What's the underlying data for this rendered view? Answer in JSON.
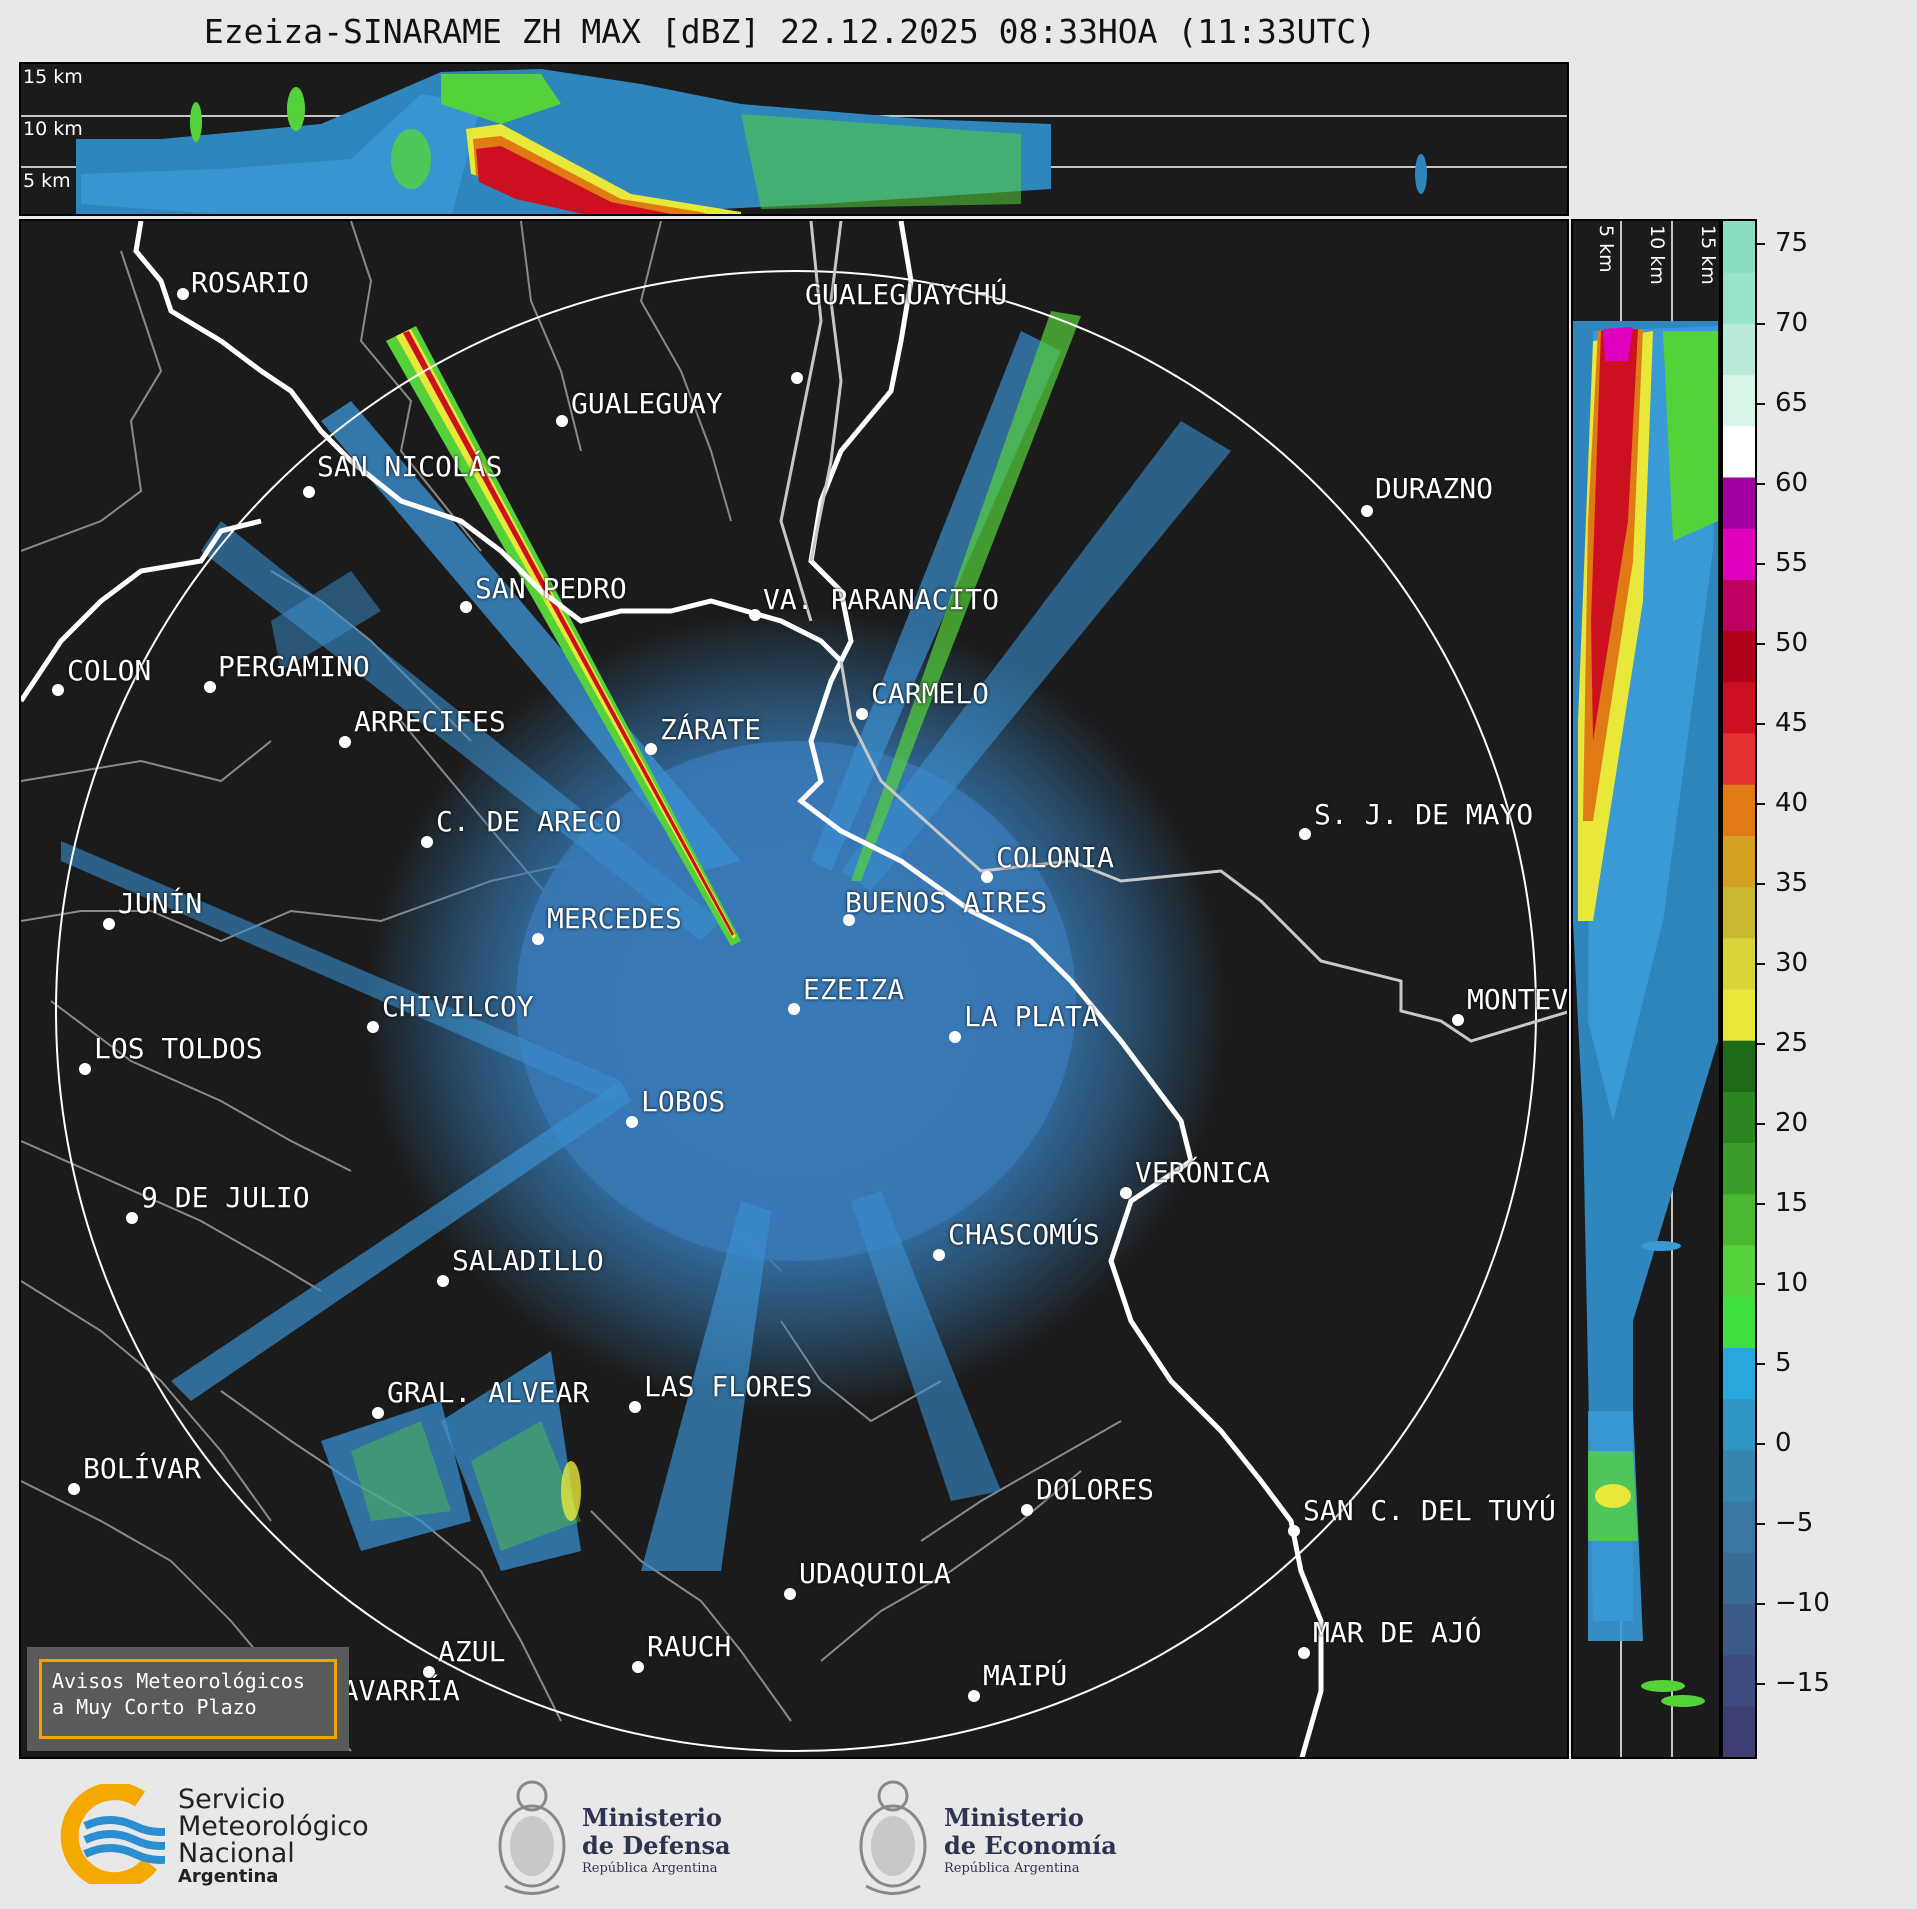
{
  "title": "Ezeiza-SINARAME ZH MAX [dBZ] 22.12.2025 08:33HOA (11:33UTC)",
  "top_panel": {
    "height_labels": [
      "15 km",
      "10 km",
      "5 km"
    ]
  },
  "side_panel": {
    "height_labels": [
      "5 km",
      "10 km",
      "15 km"
    ]
  },
  "colorbar": {
    "ticks": [
      "75",
      "70",
      "65",
      "60",
      "55",
      "50",
      "45",
      "40",
      "35",
      "30",
      "25",
      "20",
      "15",
      "10",
      "5",
      "0",
      "−5",
      "−10",
      "−15"
    ],
    "colors": [
      "#3d3f70",
      "#3e4a80",
      "#3b5a8a",
      "#3a6a95",
      "#3878a2",
      "#3585ad",
      "#2f95c2",
      "#27a8da",
      "#3fe03f",
      "#55d23a",
      "#48b830",
      "#3a9e2a",
      "#2a8420",
      "#1e6a18",
      "#e8e83a",
      "#d8d43a",
      "#c8b830",
      "#d4a020",
      "#e07a15",
      "#e83030",
      "#cc1020",
      "#b0001a",
      "#c00060",
      "#e000c0",
      "#a000a0",
      "#ffffff",
      "#d8f5e8",
      "#b8ecd8",
      "#98e4c8",
      "#88dcc0"
    ]
  },
  "map": {
    "cities": [
      {
        "name": "ROSARIO"
      },
      {
        "name": "GUALEGUAYCHÚ"
      },
      {
        "name": "GUALEGUAY"
      },
      {
        "name": "SAN NICOLÁS"
      },
      {
        "name": "DURAZNO"
      },
      {
        "name": "SAN PEDRO"
      },
      {
        "name": "VA. PARANACITO"
      },
      {
        "name": "COLON"
      },
      {
        "name": "PERGAMINO"
      },
      {
        "name": "CARMELO"
      },
      {
        "name": "ARRECIFES"
      },
      {
        "name": "ZÁRATE"
      },
      {
        "name": "S. J. DE MAYO"
      },
      {
        "name": "C. DE ARECO"
      },
      {
        "name": "COLONIA"
      },
      {
        "name": "JUNÍN"
      },
      {
        "name": "BUENOS AIRES"
      },
      {
        "name": "MERCEDES"
      },
      {
        "name": "EZEIZA"
      },
      {
        "name": "MONTEV"
      },
      {
        "name": "CHIVILCOY"
      },
      {
        "name": "LA PLATA"
      },
      {
        "name": "LOS TOLDOS"
      },
      {
        "name": "LOBOS"
      },
      {
        "name": "VERÓNICA"
      },
      {
        "name": "9 DE JULIO"
      },
      {
        "name": "CHASCOMÚS"
      },
      {
        "name": "SALADILLO"
      },
      {
        "name": "GRAL. ALVEAR"
      },
      {
        "name": "LAS FLORES"
      },
      {
        "name": "BOLÍVAR"
      },
      {
        "name": "DOLORES"
      },
      {
        "name": "SAN C. DEL TUYÚ"
      },
      {
        "name": "UDAQUIOLA"
      },
      {
        "name": "MAR DE AJÓ"
      },
      {
        "name": "AZUL"
      },
      {
        "name": "RAUCH"
      },
      {
        "name": "OLAVARRÍA"
      },
      {
        "name": "MAIPÚ"
      }
    ],
    "avisos": {
      "line1": "Avisos Meteorológicos",
      "line2": "a Muy Corto Plazo"
    }
  },
  "footer": {
    "smn": {
      "line1": "Servicio",
      "line2": "Meteorológico",
      "line3": "Nacional",
      "line4": "Argentina"
    },
    "defensa": {
      "title1": "Ministerio",
      "title2": "de Defensa",
      "sub": "República Argentina"
    },
    "economia": {
      "title1": "Ministerio",
      "title2": "de Economía",
      "sub": "República Argentina"
    }
  }
}
